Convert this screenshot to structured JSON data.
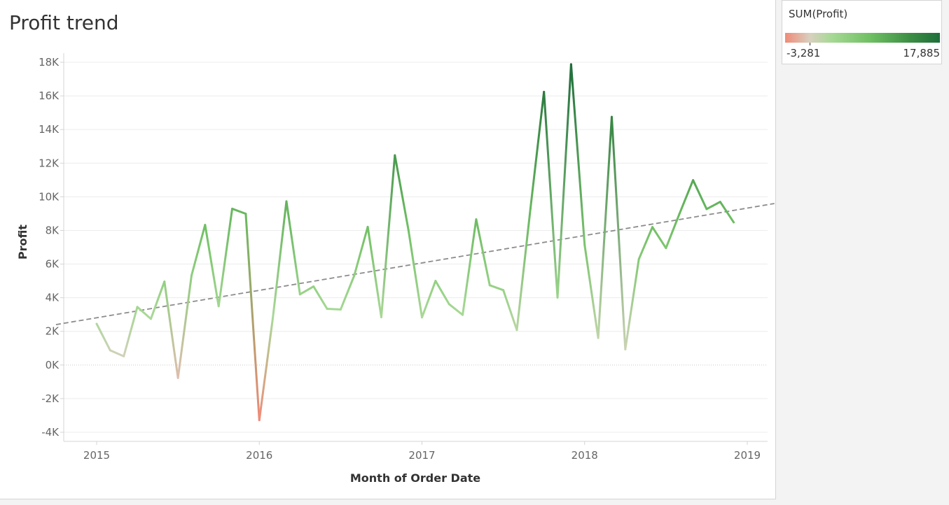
{
  "chart_data": {
    "type": "line",
    "title": "Profit trend",
    "xlabel": "Month of Order Date",
    "ylabel": "Profit",
    "ylim": [
      -4500,
      18500
    ],
    "y_ticks": [
      {
        "value": 18000,
        "label": "18K"
      },
      {
        "value": 16000,
        "label": "16K"
      },
      {
        "value": 14000,
        "label": "14K"
      },
      {
        "value": 12000,
        "label": "12K"
      },
      {
        "value": 10000,
        "label": "10K"
      },
      {
        "value": 8000,
        "label": "8K"
      },
      {
        "value": 6000,
        "label": "6K"
      },
      {
        "value": 4000,
        "label": "4K"
      },
      {
        "value": 2000,
        "label": "2K"
      },
      {
        "value": 0,
        "label": "0K"
      },
      {
        "value": -2000,
        "label": "-2K"
      },
      {
        "value": -4000,
        "label": "-4K"
      }
    ],
    "x_ticks": [
      {
        "value": "2015-01",
        "label": "2015"
      },
      {
        "value": "2016-01",
        "label": "2016"
      },
      {
        "value": "2017-01",
        "label": "2017"
      },
      {
        "value": "2018-01",
        "label": "2018"
      },
      {
        "value": "2019-01",
        "label": "2019"
      }
    ],
    "grid": true,
    "trend_line": {
      "start": {
        "x": "2014-10",
        "y": 2400
      },
      "end": {
        "x": "2019-03",
        "y": 9600
      },
      "style": "dashed"
    },
    "series": [
      {
        "x": [
          "2015-01",
          "2015-02",
          "2015-03",
          "2015-04",
          "2015-05",
          "2015-06",
          "2015-07",
          "2015-08",
          "2015-09",
          "2015-10",
          "2015-11",
          "2015-12",
          "2016-01",
          "2016-02",
          "2016-03",
          "2016-04",
          "2016-05",
          "2016-06",
          "2016-07",
          "2016-08",
          "2016-09",
          "2016-10",
          "2016-11",
          "2016-12",
          "2017-01",
          "2017-02",
          "2017-03",
          "2017-04",
          "2017-05",
          "2017-06",
          "2017-07",
          "2017-08",
          "2017-09",
          "2017-10",
          "2017-11",
          "2017-12",
          "2018-01",
          "2018-02",
          "2018-03",
          "2018-04",
          "2018-05",
          "2018-06",
          "2018-07",
          "2018-08",
          "2018-09",
          "2018-10",
          "2018-11",
          "2018-12"
        ],
        "values": [
          2450,
          870,
          520,
          3450,
          2740,
          4960,
          -770,
          5320,
          8330,
          3490,
          9290,
          8990,
          -3280,
          2810,
          9730,
          4200,
          4670,
          3340,
          3300,
          5310,
          8210,
          2840,
          12470,
          8040,
          2830,
          5000,
          3620,
          2980,
          8660,
          4740,
          4450,
          2080,
          9280,
          16240,
          4010,
          17880,
          7140,
          1610,
          14750,
          930,
          6290,
          8200,
          6950,
          9000,
          10990,
          9270,
          9700,
          8480
        ]
      }
    ],
    "color_legend": {
      "title": "SUM(Profit)",
      "min_label": "-3,281",
      "max_label": "17,885",
      "min_value": -3281,
      "max_value": 17885,
      "colors": [
        "#f08a78",
        "#d8d0bf",
        "#a6d994",
        "#6fbf63",
        "#3d8f45",
        "#1f6e3b"
      ]
    }
  }
}
